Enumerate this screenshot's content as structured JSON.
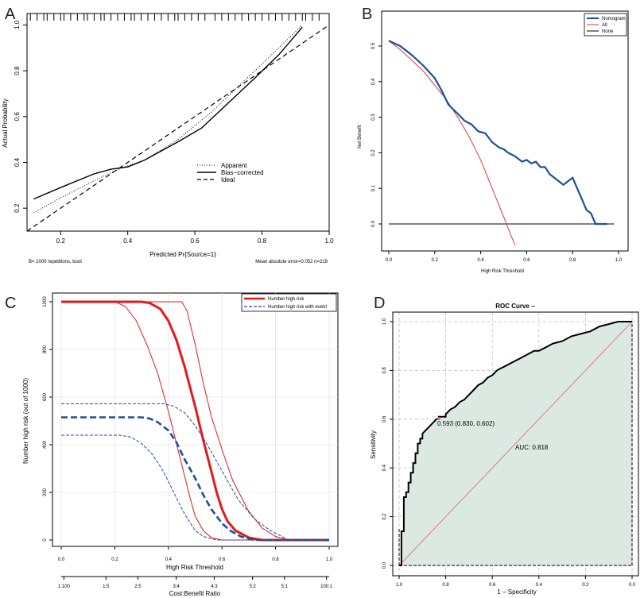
{
  "colors": {
    "nomogram": "#1f4e9a",
    "all": "#e03a3a",
    "none": "#000000",
    "risk_red": "#e31a1c",
    "risk_blue": "#1f4e9a",
    "roc_fill": "#dce9e2",
    "roc_diag": "#d98080",
    "roc_point": "#e57373"
  },
  "chart_data": [
    {
      "panel": "A",
      "type": "line",
      "xlabel": "Predicted Pr{Source=1}",
      "ylabel": "Actual Probability",
      "xlim": [
        0.1,
        1.0
      ],
      "ylim": [
        0.1,
        1.05
      ],
      "xticks": [
        "0.2",
        "0.4",
        "0.6",
        "0.8",
        "1.0"
      ],
      "xtick_values": [
        0.2,
        0.4,
        0.6,
        0.8,
        1.0
      ],
      "yticks": [
        "0.2",
        "0.4",
        "0.6",
        "0.8",
        "1.0"
      ],
      "ytick_values": [
        0.2,
        0.4,
        0.6,
        0.8,
        1.0
      ],
      "footnote_left": "B= 1000 repetitions, boot",
      "footnote_right": "Mean absolute error=0.052 n=219",
      "legend": [
        "Apparent",
        "Bias−corrected",
        "Ideal"
      ],
      "series": [
        {
          "name": "Apparent",
          "style": "dotted",
          "x": [
            0.12,
            0.2,
            0.3,
            0.38,
            0.45,
            0.55,
            0.65,
            0.75,
            0.85,
            0.92
          ],
          "y": [
            0.18,
            0.245,
            0.32,
            0.375,
            0.41,
            0.5,
            0.62,
            0.76,
            0.9,
            1.0
          ]
        },
        {
          "name": "Bias−corrected",
          "style": "solid",
          "x": [
            0.12,
            0.2,
            0.3,
            0.35,
            0.4,
            0.45,
            0.55,
            0.62,
            0.7,
            0.78,
            0.85,
            0.92
          ],
          "y": [
            0.24,
            0.29,
            0.35,
            0.37,
            0.38,
            0.41,
            0.49,
            0.55,
            0.66,
            0.77,
            0.87,
            0.99
          ]
        },
        {
          "name": "Ideal",
          "style": "dashed",
          "x": [
            0.1,
            1.0
          ],
          "y": [
            0.1,
            1.0
          ]
        }
      ],
      "rug": [
        0.11,
        0.13,
        0.15,
        0.16,
        0.18,
        0.2,
        0.21,
        0.23,
        0.25,
        0.27,
        0.28,
        0.3,
        0.32,
        0.33,
        0.35,
        0.37,
        0.39,
        0.41,
        0.42,
        0.44,
        0.46,
        0.48,
        0.5,
        0.52,
        0.54,
        0.55,
        0.57,
        0.59,
        0.61,
        0.63,
        0.66,
        0.68,
        0.7,
        0.72,
        0.74,
        0.76,
        0.78,
        0.8,
        0.82,
        0.84,
        0.86,
        0.88,
        0.9,
        0.92,
        0.93,
        0.95,
        0.97
      ]
    },
    {
      "panel": "B",
      "type": "line",
      "xlabel": "High Risk Threshold",
      "ylabel": "Net Benefit",
      "xlim": [
        0,
        1
      ],
      "ylim": [
        -0.05,
        0.55
      ],
      "xticks": [
        "0.0",
        "0.2",
        "0.4",
        "0.6",
        "0.8",
        "1.0"
      ],
      "xtick_values": [
        0,
        0.2,
        0.4,
        0.6,
        0.8,
        1.0
      ],
      "yticks": [
        "0.0",
        "0.1",
        "0.2",
        "0.3",
        "0.4",
        "0.5"
      ],
      "ytick_values": [
        0,
        0.1,
        0.2,
        0.3,
        0.4,
        0.5
      ],
      "legend": [
        "Nomogram",
        "All",
        "None"
      ],
      "series": [
        {
          "name": "Nomogram",
          "x": [
            0.0,
            0.05,
            0.1,
            0.15,
            0.2,
            0.23,
            0.26,
            0.3,
            0.33,
            0.36,
            0.39,
            0.42,
            0.45,
            0.48,
            0.5,
            0.52,
            0.55,
            0.58,
            0.6,
            0.62,
            0.64,
            0.66,
            0.68,
            0.7,
            0.72,
            0.74,
            0.76,
            0.78,
            0.8,
            0.82,
            0.84,
            0.86,
            0.88,
            0.9,
            0.92,
            0.95
          ],
          "y": [
            0.515,
            0.5,
            0.475,
            0.445,
            0.41,
            0.375,
            0.335,
            0.31,
            0.29,
            0.28,
            0.26,
            0.255,
            0.23,
            0.215,
            0.21,
            0.2,
            0.19,
            0.175,
            0.18,
            0.17,
            0.175,
            0.16,
            0.16,
            0.14,
            0.13,
            0.12,
            0.11,
            0.12,
            0.13,
            0.1,
            0.07,
            0.04,
            0.03,
            0.0,
            0.0,
            0.0
          ]
        },
        {
          "name": "All",
          "x": [
            0.0,
            0.05,
            0.1,
            0.15,
            0.2,
            0.25,
            0.3,
            0.35,
            0.4,
            0.45,
            0.5,
            0.53,
            0.55
          ],
          "y": [
            0.515,
            0.49,
            0.46,
            0.43,
            0.39,
            0.35,
            0.3,
            0.245,
            0.18,
            0.1,
            0.02,
            -0.03,
            -0.06
          ]
        },
        {
          "name": "None",
          "x": [
            0.0,
            0.98
          ],
          "y": [
            0.0,
            0.0
          ]
        }
      ]
    },
    {
      "panel": "C",
      "type": "line",
      "xlabel": "High Risk Threshold",
      "x2label": "Cost:Benefit Ratio",
      "ylabel": "Number high risk (out of 1000)",
      "xlim": [
        0,
        1
      ],
      "ylim": [
        0,
        1000
      ],
      "xticks": [
        "0.0",
        "0.2",
        "0.4",
        "0.6",
        "0.8",
        "1.0"
      ],
      "xtick_values": [
        0,
        0.2,
        0.4,
        0.6,
        0.8,
        1.0
      ],
      "x2ticks": [
        "1:100",
        "1:5",
        "2:5",
        "3:4",
        "4:3",
        "5:2",
        "5:1",
        "100:1"
      ],
      "x2tick_values": [
        0.01,
        0.167,
        0.286,
        0.429,
        0.571,
        0.714,
        0.833,
        0.99
      ],
      "yticks": [
        "0",
        "200",
        "400",
        "600",
        "800",
        "1000"
      ],
      "ytick_values": [
        0,
        200,
        400,
        600,
        800,
        1000
      ],
      "legend": [
        "Number high risk",
        "Number high risk with event"
      ],
      "series": [
        {
          "name": "Number high risk",
          "style": "bold",
          "x": [
            0,
            0.3,
            0.33,
            0.37,
            0.4,
            0.43,
            0.46,
            0.5,
            0.53,
            0.56,
            0.58,
            0.6,
            0.62,
            0.65,
            0.7,
            0.75,
            1.0
          ],
          "y": [
            1000,
            1000,
            995,
            970,
            920,
            840,
            730,
            560,
            420,
            290,
            200,
            130,
            80,
            40,
            10,
            0,
            0
          ]
        },
        {
          "name": "Number high risk upper",
          "style": "thin",
          "x": [
            0,
            0.45,
            0.47,
            0.5,
            0.53,
            0.56,
            0.6,
            0.64,
            0.7,
            0.75,
            0.8,
            0.85,
            1.0
          ],
          "y": [
            1000,
            1000,
            960,
            820,
            660,
            520,
            380,
            250,
            120,
            50,
            15,
            0,
            0
          ]
        },
        {
          "name": "Number high risk lower",
          "style": "thin",
          "x": [
            0,
            0.2,
            0.24,
            0.28,
            0.32,
            0.36,
            0.4,
            0.44,
            0.48,
            0.5,
            0.53,
            0.56,
            0.6,
            1.0
          ],
          "y": [
            1000,
            1000,
            980,
            920,
            820,
            700,
            540,
            360,
            180,
            100,
            40,
            10,
            0,
            0
          ]
        },
        {
          "name": "Number high risk with event",
          "style": "bold-dashed",
          "x": [
            0,
            0.3,
            0.33,
            0.36,
            0.4,
            0.43,
            0.46,
            0.5,
            0.53,
            0.56,
            0.6,
            0.63,
            0.67,
            0.72,
            1.0
          ],
          "y": [
            515,
            515,
            510,
            495,
            460,
            410,
            340,
            260,
            190,
            130,
            70,
            40,
            15,
            0,
            0
          ]
        },
        {
          "name": "Event upper",
          "style": "thin-dashed",
          "x": [
            0,
            0.38,
            0.42,
            0.46,
            0.5,
            0.54,
            0.58,
            0.62,
            0.66,
            0.72,
            0.78,
            0.85,
            1.0
          ],
          "y": [
            572,
            572,
            562,
            535,
            480,
            410,
            330,
            250,
            170,
            90,
            40,
            0,
            0
          ]
        },
        {
          "name": "Event lower",
          "style": "thin-dashed",
          "x": [
            0,
            0.22,
            0.26,
            0.3,
            0.34,
            0.38,
            0.42,
            0.46,
            0.5,
            0.53,
            0.58,
            1.0
          ],
          "y": [
            440,
            440,
            432,
            405,
            360,
            290,
            200,
            110,
            40,
            15,
            0,
            0
          ]
        }
      ]
    },
    {
      "panel": "D",
      "type": "line",
      "title": "ROC Curve −",
      "xlabel": "1 − Specificity",
      "ylabel": "Sensitivity",
      "xlim": [
        1.0,
        0.0
      ],
      "ylim": [
        0.0,
        1.0
      ],
      "xticks": [
        "1.0",
        "0.8",
        "0.6",
        "0.4",
        "0.2",
        "0.0"
      ],
      "xtick_values": [
        1.0,
        0.8,
        0.6,
        0.4,
        0.2,
        0.0
      ],
      "yticks": [
        "0.0",
        "0.2",
        "0.4",
        "0.6",
        "0.8",
        "1.0"
      ],
      "ytick_values": [
        0,
        0.2,
        0.4,
        0.6,
        0.8,
        1.0
      ],
      "auc_label": "AUC: 0.818",
      "threshold_label": "0.593 (0.830, 0.602)",
      "threshold_point": {
        "specificity": 0.83,
        "sensitivity": 0.602
      },
      "series": [
        {
          "name": "ROC",
          "specificity": [
            1.0,
            0.99,
            0.99,
            0.98,
            0.98,
            0.97,
            0.97,
            0.96,
            0.96,
            0.95,
            0.95,
            0.94,
            0.94,
            0.93,
            0.93,
            0.92,
            0.92,
            0.91,
            0.91,
            0.9,
            0.9,
            0.89,
            0.88,
            0.87,
            0.86,
            0.85,
            0.84,
            0.83,
            0.83,
            0.8,
            0.8,
            0.78,
            0.76,
            0.74,
            0.72,
            0.7,
            0.68,
            0.66,
            0.64,
            0.62,
            0.6,
            0.58,
            0.56,
            0.54,
            0.52,
            0.5,
            0.48,
            0.46,
            0.44,
            0.42,
            0.4,
            0.38,
            0.36,
            0.34,
            0.3,
            0.26,
            0.22,
            0.18,
            0.14,
            0.1,
            0.06,
            0.03,
            0.0
          ],
          "sensitivity": [
            0.0,
            0.0,
            0.14,
            0.14,
            0.28,
            0.28,
            0.3,
            0.3,
            0.34,
            0.34,
            0.38,
            0.38,
            0.42,
            0.42,
            0.46,
            0.46,
            0.5,
            0.5,
            0.52,
            0.52,
            0.54,
            0.55,
            0.56,
            0.57,
            0.58,
            0.59,
            0.6,
            0.6,
            0.61,
            0.61,
            0.62,
            0.64,
            0.65,
            0.67,
            0.68,
            0.7,
            0.72,
            0.74,
            0.75,
            0.77,
            0.78,
            0.8,
            0.81,
            0.82,
            0.83,
            0.84,
            0.85,
            0.86,
            0.87,
            0.88,
            0.88,
            0.89,
            0.9,
            0.91,
            0.92,
            0.94,
            0.95,
            0.96,
            0.98,
            0.99,
            1.0,
            1.0,
            1.0
          ]
        }
      ]
    }
  ]
}
